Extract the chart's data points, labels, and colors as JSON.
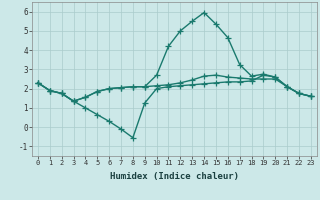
{
  "title": "",
  "xlabel": "Humidex (Indice chaleur)",
  "ylabel": "",
  "xlim": [
    -0.5,
    23.5
  ],
  "ylim": [
    -1.5,
    6.5
  ],
  "xticks": [
    0,
    1,
    2,
    3,
    4,
    5,
    6,
    7,
    8,
    9,
    10,
    11,
    12,
    13,
    14,
    15,
    16,
    17,
    18,
    19,
    20,
    21,
    22,
    23
  ],
  "yticks": [
    -1,
    0,
    1,
    2,
    3,
    4,
    5,
    6
  ],
  "background_color": "#cce8e8",
  "grid_color": "#aacccc",
  "line_color": "#1a7a6e",
  "line_width": 1.0,
  "marker": "+",
  "marker_size": 4,
  "series": [
    [
      2.3,
      1.9,
      1.75,
      1.35,
      1.0,
      0.65,
      0.3,
      -0.1,
      -0.55,
      1.25,
      2.0,
      2.1,
      2.15,
      2.2,
      2.25,
      2.3,
      2.35,
      2.35,
      2.4,
      2.7,
      2.6,
      2.1,
      1.75,
      1.6
    ],
    [
      2.3,
      1.9,
      1.75,
      1.35,
      1.55,
      1.85,
      2.0,
      2.05,
      2.1,
      2.1,
      2.15,
      2.2,
      2.3,
      2.45,
      2.65,
      2.7,
      2.6,
      2.55,
      2.5,
      2.5,
      2.5,
      2.1,
      1.75,
      1.6
    ],
    [
      2.3,
      1.9,
      1.75,
      1.35,
      1.55,
      1.85,
      2.0,
      2.05,
      2.1,
      2.1,
      2.7,
      4.2,
      5.0,
      5.5,
      5.95,
      5.35,
      4.65,
      3.25,
      2.65,
      2.75,
      2.6,
      2.1,
      1.75,
      1.6
    ]
  ]
}
